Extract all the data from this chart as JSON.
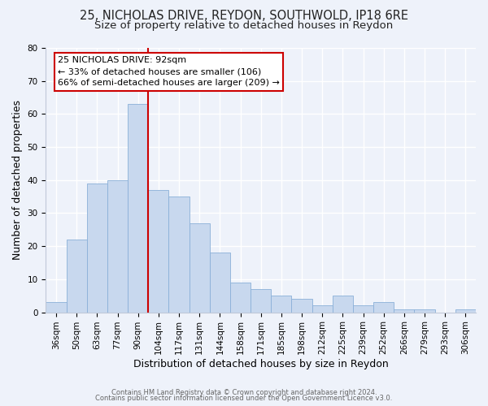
{
  "title1": "25, NICHOLAS DRIVE, REYDON, SOUTHWOLD, IP18 6RE",
  "title2": "Size of property relative to detached houses in Reydon",
  "xlabel": "Distribution of detached houses by size in Reydon",
  "ylabel": "Number of detached properties",
  "categories": [
    "36sqm",
    "50sqm",
    "63sqm",
    "77sqm",
    "90sqm",
    "104sqm",
    "117sqm",
    "131sqm",
    "144sqm",
    "158sqm",
    "171sqm",
    "185sqm",
    "198sqm",
    "212sqm",
    "225sqm",
    "239sqm",
    "252sqm",
    "266sqm",
    "279sqm",
    "293sqm",
    "306sqm"
  ],
  "values": [
    3,
    22,
    39,
    40,
    63,
    37,
    35,
    27,
    18,
    9,
    7,
    5,
    4,
    2,
    5,
    2,
    3,
    1,
    1,
    0,
    1
  ],
  "bar_color": "#c8d8ee",
  "bar_edge_color": "#8ab0d8",
  "marker_line_color": "#cc0000",
  "annotation_box_color": "#ffffff",
  "annotation_box_edge": "#cc0000",
  "marker_label": "25 NICHOLAS DRIVE: 92sqm",
  "annotation_line1": "← 33% of detached houses are smaller (106)",
  "annotation_line2": "66% of semi-detached houses are larger (209) →",
  "ylim": [
    0,
    80
  ],
  "yticks": [
    0,
    10,
    20,
    30,
    40,
    50,
    60,
    70,
    80
  ],
  "background_color": "#eef2fa",
  "grid_color": "#ffffff",
  "footer1": "Contains HM Land Registry data © Crown copyright and database right 2024.",
  "footer2": "Contains public sector information licensed under the Open Government Licence v3.0.",
  "title_fontsize": 10.5,
  "subtitle_fontsize": 9.5,
  "axis_label_fontsize": 9,
  "tick_fontsize": 7.5,
  "annotation_fontsize": 8,
  "footer_fontsize": 6
}
